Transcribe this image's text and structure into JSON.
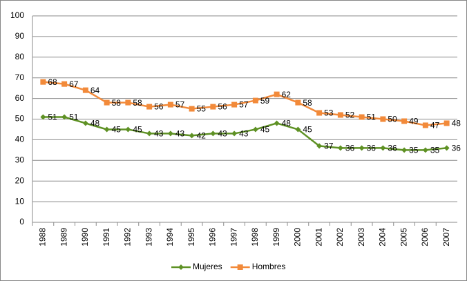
{
  "chart_data": {
    "type": "line",
    "categories": [
      "1988",
      "1989",
      "1990",
      "1991",
      "1992",
      "1993",
      "1994",
      "1995",
      "1996",
      "1997",
      "1998",
      "1999",
      "2000",
      "2001",
      "2002",
      "2003",
      "2004",
      "2005",
      "2006",
      "2007"
    ],
    "series": [
      {
        "name": "Mujeres",
        "color": "#5e9124",
        "marker": "diamond",
        "values": [
          51,
          51,
          48,
          45,
          45,
          43,
          43,
          42,
          43,
          43,
          45,
          48,
          45,
          37,
          36,
          36,
          36,
          35,
          35,
          36
        ]
      },
      {
        "name": "Hombres",
        "color": "#f28a3a",
        "marker": "square",
        "values": [
          68,
          67,
          64,
          58,
          58,
          56,
          57,
          55,
          56,
          57,
          59,
          62,
          58,
          53,
          52,
          51,
          50,
          49,
          47,
          48
        ]
      }
    ],
    "ylim": [
      0,
      100
    ],
    "yticks": [
      0,
      10,
      20,
      30,
      40,
      50,
      60,
      70,
      80,
      90,
      100
    ],
    "grid": true,
    "legend": "bottom"
  }
}
